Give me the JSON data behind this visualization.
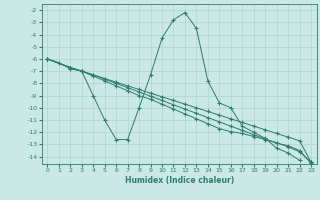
{
  "xlabel": "Humidex (Indice chaleur)",
  "background_color": "#c9e8e6",
  "grid_color": "#b0d4d0",
  "line_color": "#2e7d6e",
  "xlim": [
    -0.5,
    23.5
  ],
  "ylim": [
    -14.6,
    -1.5
  ],
  "yticks": [
    -2,
    -3,
    -4,
    -5,
    -6,
    -7,
    -8,
    -9,
    -10,
    -11,
    -12,
    -13,
    -14
  ],
  "xticks": [
    0,
    1,
    2,
    3,
    4,
    5,
    6,
    7,
    8,
    9,
    10,
    11,
    12,
    13,
    14,
    15,
    16,
    17,
    18,
    19,
    20,
    21,
    22,
    23
  ],
  "series": [
    {
      "x": [
        0,
        1,
        2,
        3,
        4,
        5,
        6,
        7,
        8,
        9,
        10,
        11,
        12,
        13,
        14,
        15,
        16,
        17,
        18,
        19,
        20,
        21,
        22,
        23
      ],
      "y": [
        -6,
        -6.3,
        -6.8,
        -7.0,
        -9.0,
        -11.0,
        -12.6,
        -12.6,
        -10.0,
        -7.3,
        -4.3,
        -2.8,
        -2.2,
        -3.5,
        -7.8,
        -9.6,
        -10.0,
        -11.5,
        -12.0,
        -12.5,
        -13.3,
        -13.7,
        -14.3,
        null
      ]
    },
    {
      "x": [
        0,
        2,
        3,
        4,
        5,
        6,
        7,
        8,
        9,
        10,
        11,
        12,
        13,
        14,
        15,
        16,
        17,
        18,
        19,
        20,
        21,
        22,
        23
      ],
      "y": [
        -6,
        -6.7,
        -7.0,
        -7.3,
        -7.6,
        -7.9,
        -8.2,
        -8.5,
        -8.8,
        -9.1,
        -9.4,
        -9.7,
        -10.0,
        -10.3,
        -10.6,
        -10.9,
        -11.2,
        -11.5,
        -11.8,
        -12.1,
        -12.4,
        -12.7,
        -14.45
      ]
    },
    {
      "x": [
        0,
        2,
        3,
        4,
        5,
        6,
        7,
        8,
        9,
        10,
        11,
        12,
        13,
        14,
        15,
        16,
        17,
        18,
        19,
        20,
        21,
        22,
        23
      ],
      "y": [
        -6,
        -6.7,
        -7.0,
        -7.3,
        -7.65,
        -8.0,
        -8.35,
        -8.7,
        -9.05,
        -9.4,
        -9.75,
        -10.1,
        -10.45,
        -10.8,
        -11.15,
        -11.5,
        -11.85,
        -12.2,
        -12.55,
        -12.9,
        -13.1,
        -13.5,
        -14.55
      ]
    },
    {
      "x": [
        0,
        2,
        3,
        4,
        5,
        6,
        7,
        8,
        9,
        10,
        11,
        12,
        13,
        14,
        15,
        16,
        17,
        18,
        19,
        20,
        21,
        22,
        23
      ],
      "y": [
        -6,
        -6.7,
        -7.0,
        -7.4,
        -7.8,
        -8.2,
        -8.6,
        -9.0,
        -9.3,
        -9.7,
        -10.1,
        -10.5,
        -10.9,
        -11.3,
        -11.7,
        -11.95,
        -12.1,
        -12.35,
        -12.6,
        -12.85,
        -13.2,
        -13.6,
        -14.45
      ]
    }
  ]
}
